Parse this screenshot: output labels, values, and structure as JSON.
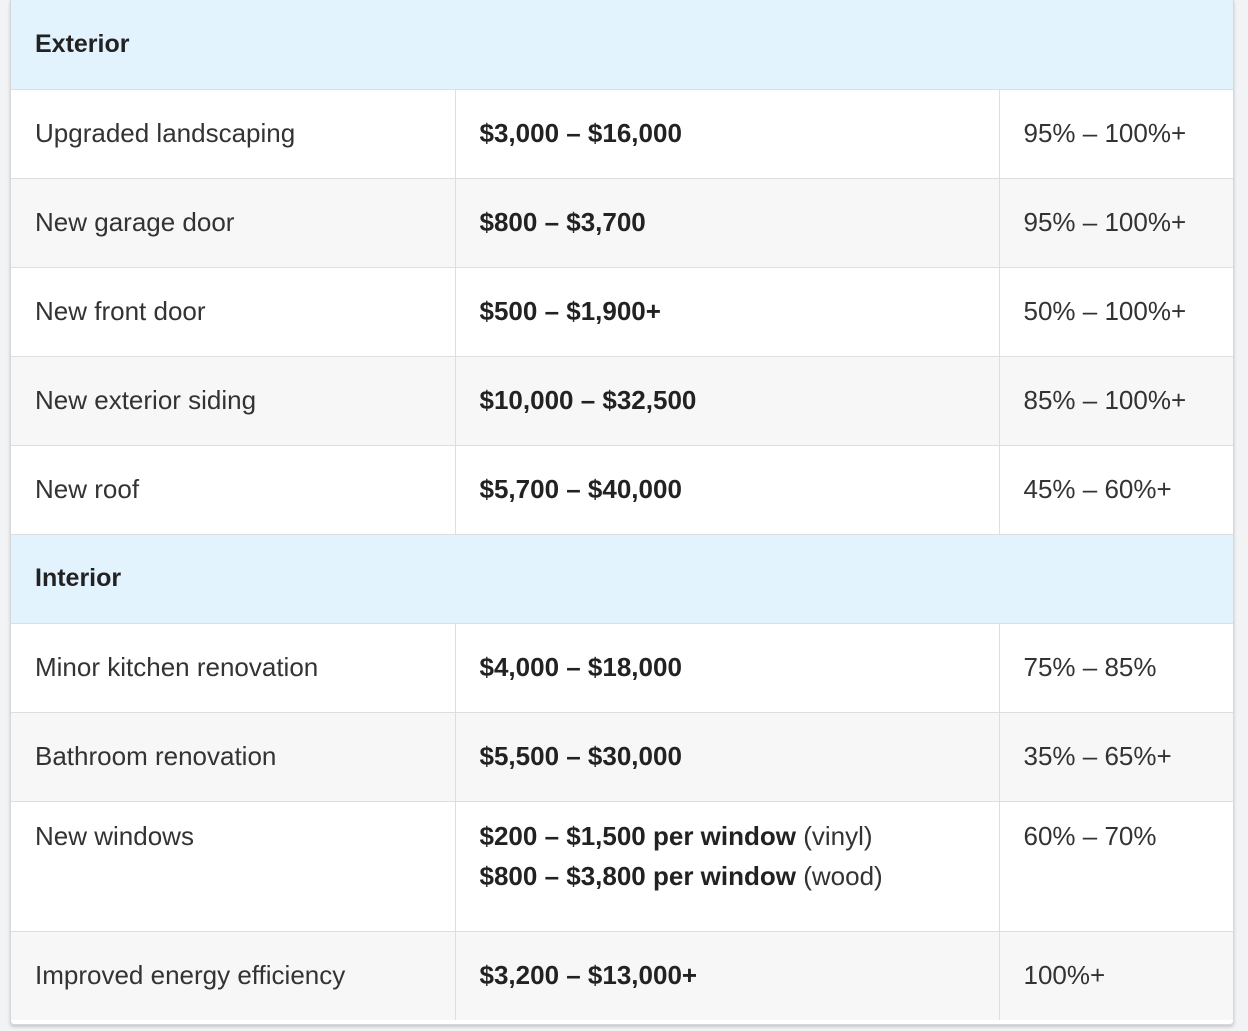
{
  "sections": [
    {
      "title": "Exterior",
      "rows": [
        {
          "name": "Upgraded landscaping",
          "cost": "$3,000 – $16,000",
          "roi": "95% – 100%+"
        },
        {
          "name": "New garage door",
          "cost": "$800 – $3,700",
          "roi": "95% – 100%+"
        },
        {
          "name": "New front door",
          "cost": "$500 – $1,900+",
          "roi": "50% – 100%+"
        },
        {
          "name": "New exterior siding",
          "cost": "$10,000 – $32,500",
          "roi": "85% – 100%+"
        },
        {
          "name": "New roof",
          "cost": "$5,700 – $40,000",
          "roi": "45% – 60%+"
        }
      ]
    },
    {
      "title": "Interior",
      "rows": [
        {
          "name": "Minor kitchen renovation",
          "cost": "$4,000 – $18,000",
          "roi": "75% – 85%"
        },
        {
          "name": "Bathroom renovation",
          "cost": "$5,500 – $30,000",
          "roi": "35% – 65%+"
        },
        {
          "name": "New windows",
          "cost_lines": [
            {
              "bold": "$200 – $1,500 per window",
              "note": "(vinyl)"
            },
            {
              "bold": "$800 – $3,800 per window",
              "note": "(wood)"
            }
          ],
          "roi": "60% – 70%"
        },
        {
          "name": "Improved energy efficiency",
          "cost": "$3,200 – $13,000+",
          "roi": "100%+"
        }
      ]
    }
  ],
  "colors": {
    "section_bg": "#e3f3fd",
    "row_alt_bg": "#f7f7f8",
    "border": "#dcdee1"
  }
}
